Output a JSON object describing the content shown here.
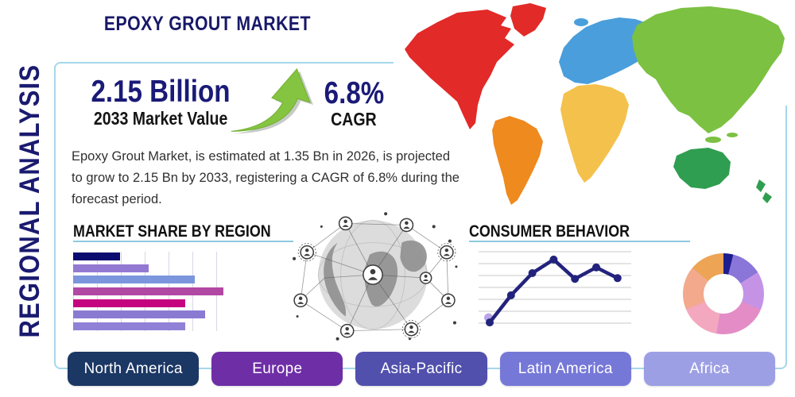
{
  "header": {
    "title": "EPOXY GROUT MARKET",
    "side_label": "REGIONAL ANALYSIS"
  },
  "stats": {
    "market_value": "2.15 Billion",
    "market_value_label": "2033 Market Value",
    "cagr_value": "6.8%",
    "cagr_label": "CAGR"
  },
  "description": [
    "Epoxy Grout Market, is estimated at 1.35 Bn in 2026, is projected",
    "to grow to 2.15 Bn by 2033, registering a CAGR of 6.8% during the",
    "forecast period."
  ],
  "chart_data": [
    {
      "type": "bar",
      "orientation": "horizontal",
      "title": "MARKET SHARE BY REGION",
      "values": [
        28,
        45,
        73,
        90,
        67,
        79,
        67
      ],
      "colors": [
        "#0b0b70",
        "#9379d2",
        "#7b96dd",
        "#b148a4",
        "#c50580",
        "#8a7ad2",
        "#9181d6"
      ],
      "xlim": [
        0,
        100
      ],
      "grid": "vertical",
      "tick_labels": []
    },
    {
      "type": "line",
      "title": "CONSUMER BEHAVIOR",
      "x": [
        1,
        2,
        3,
        4,
        5,
        6,
        7
      ],
      "y": [
        1,
        39,
        70,
        89,
        62,
        78,
        63
      ],
      "ylim": [
        0,
        100
      ],
      "line_color": "#23237d",
      "marker_color": "#23237d",
      "start_dot_color": "#b9a6e8",
      "grid": "horizontal",
      "gridline_count": 7
    },
    {
      "type": "pie",
      "subtype": "donut",
      "values": [
        3.9,
        12.2,
        15.3,
        21.4,
        15.8,
        17.5,
        13.9
      ],
      "colors": [
        "#1d1d8e",
        "#8a75d8",
        "#c593e6",
        "#e38cc6",
        "#f3a8c0",
        "#f2a98c",
        "#eda455"
      ],
      "start_angle_deg": 0
    }
  ],
  "map": {
    "region_colors": {
      "north_america": "#e22a28",
      "greenland": "#e22a28",
      "south_america": "#ef8a1f",
      "europe": "#4a9edb",
      "iceland": "#4a9edb",
      "africa": "#f4c14c",
      "asia": "#7cc142",
      "oceania": "#2f9e50"
    }
  },
  "regions": [
    {
      "label": "North America",
      "color": "#1b3764"
    },
    {
      "label": "Europe",
      "color": "#6e2ea6"
    },
    {
      "label": "Asia-Pacific",
      "color": "#5150ad"
    },
    {
      "label": "Latin America",
      "color": "#7678d8"
    },
    {
      "label": "Africa",
      "color": "#9d9fe5"
    }
  ],
  "accents": {
    "box_border": "#a6d7ea",
    "heading_underline": "#8ecade",
    "navy": "#1a1a78",
    "arrow_green": "#85c441"
  }
}
